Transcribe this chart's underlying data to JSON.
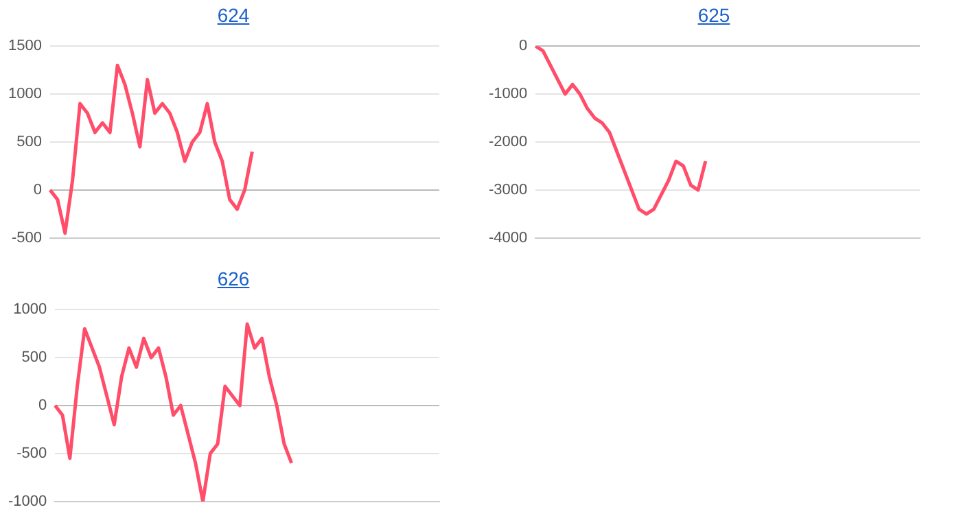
{
  "chart_data": [
    {
      "type": "line",
      "title": "624",
      "categories": [
        null,
        null,
        null,
        null,
        null,
        null,
        null,
        null,
        null,
        null,
        null,
        null,
        null,
        null,
        null,
        null,
        null,
        null,
        null,
        null,
        null,
        null,
        null,
        null,
        null,
        null,
        null,
        null,
        null,
        null,
        null,
        null,
        null,
        null,
        null,
        null,
        null,
        null,
        null,
        null,
        null,
        null,
        null,
        null,
        null,
        null,
        null,
        null,
        null,
        null,
        null,
        null,
        null
      ],
      "series": [
        {
          "color": "#ff4d6a",
          "values": [
            0,
            -100,
            -450,
            100,
            900,
            800,
            600,
            700,
            600,
            1300,
            1100,
            800,
            450,
            1150,
            800,
            900,
            800,
            600,
            300,
            500,
            600,
            900,
            500,
            300,
            -100,
            -200,
            0,
            400,
            null,
            null,
            null,
            null,
            null,
            null,
            null,
            null,
            null,
            null,
            null,
            null,
            null,
            null,
            null,
            null,
            null,
            null,
            null,
            null,
            null,
            null,
            null,
            null,
            null
          ]
        }
      ],
      "ylim": [
        -500,
        1500
      ],
      "yticks": [
        -500,
        0,
        500,
        1000,
        1500
      ],
      "grid": "y",
      "tick_labels": "y",
      "marker": "none",
      "line_style": "solid"
    },
    {
      "type": "line",
      "title": "625",
      "categories": [
        null,
        null,
        null,
        null,
        null,
        null,
        null,
        null,
        null,
        null,
        null,
        null,
        null,
        null,
        null,
        null,
        null,
        null,
        null,
        null,
        null,
        null,
        null,
        null,
        null,
        null,
        null,
        null,
        null,
        null,
        null,
        null,
        null,
        null,
        null,
        null,
        null,
        null,
        null,
        null,
        null,
        null,
        null,
        null,
        null,
        null,
        null,
        null,
        null,
        null,
        null,
        null,
        null
      ],
      "series": [
        {
          "color": "#ff4d6a",
          "values": [
            0,
            -100,
            -400,
            -700,
            -1000,
            -800,
            -1000,
            -1300,
            -1500,
            -1600,
            -1800,
            -2200,
            -2600,
            -3000,
            -3400,
            -3500,
            -3400,
            -3100,
            -2800,
            -2400,
            -2500,
            -2900,
            -3000,
            -2400,
            null,
            null,
            null,
            null,
            null,
            null,
            null,
            null,
            null,
            null,
            null,
            null,
            null,
            null,
            null,
            null,
            null,
            null,
            null,
            null,
            null,
            null,
            null,
            null,
            null,
            null,
            null,
            null,
            null
          ]
        }
      ],
      "ylim": [
        -4000,
        0
      ],
      "yticks": [
        -4000,
        -3000,
        -2000,
        -1000,
        0
      ],
      "grid": "y",
      "tick_labels": "y",
      "marker": "none",
      "line_style": "solid"
    },
    {
      "type": "line",
      "title": "626",
      "categories": [
        null,
        null,
        null,
        null,
        null,
        null,
        null,
        null,
        null,
        null,
        null,
        null,
        null,
        null,
        null,
        null,
        null,
        null,
        null,
        null,
        null,
        null,
        null,
        null,
        null,
        null,
        null,
        null,
        null,
        null,
        null,
        null,
        null,
        null,
        null,
        null,
        null,
        null,
        null,
        null,
        null,
        null,
        null,
        null,
        null,
        null,
        null,
        null,
        null,
        null,
        null,
        null,
        null
      ],
      "series": [
        {
          "color": "#ff4d6a",
          "values": [
            0,
            -100,
            -550,
            200,
            800,
            600,
            400,
            100,
            -200,
            300,
            600,
            400,
            700,
            500,
            600,
            300,
            -100,
            0,
            -300,
            -600,
            -1000,
            -500,
            -400,
            200,
            100,
            0,
            850,
            600,
            700,
            300,
            0,
            -400,
            -600,
            null,
            null,
            null,
            null,
            null,
            null,
            null,
            null,
            null,
            null,
            null,
            null,
            null,
            null,
            null,
            null,
            null,
            null,
            null,
            null
          ]
        }
      ],
      "ylim": [
        -1000,
        1000
      ],
      "yticks": [
        -1000,
        -500,
        0,
        500,
        1000
      ],
      "grid": "y",
      "tick_labels": "y",
      "marker": "none",
      "line_style": "solid"
    }
  ]
}
